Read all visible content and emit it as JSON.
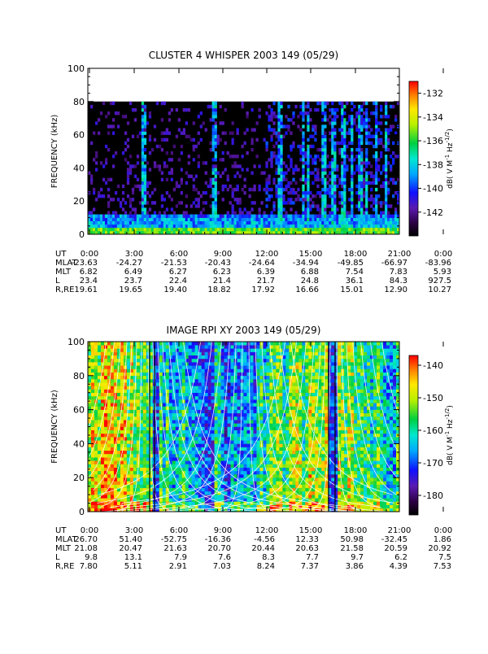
{
  "chart_data": [
    {
      "type": "heatmap",
      "title": "CLUSTER 4 WHISPER 2003 149 (05/29)",
      "ylabel": "FREQUENCY (kHz)",
      "ylim": [
        0,
        100
      ],
      "yticks": [
        "0",
        "20",
        "40",
        "60",
        "80",
        "100"
      ],
      "data_ceiling_khz": 80,
      "colorbar": {
        "label": "dB( V M⁻¹ Hz⁻¹ᐟ²)",
        "label_parts": [
          "dB( V M",
          "-1",
          " Hz",
          "-1/2",
          ")"
        ],
        "range": [
          -144,
          -131
        ],
        "ticks": [
          "-132",
          "-134",
          "-136",
          "-138",
          "-140",
          "-142"
        ],
        "tick_values": [
          -132,
          -134,
          -136,
          -138,
          -140,
          -142
        ]
      },
      "x_ticks": [
        "0:00",
        "3:00",
        "6:00",
        "9:00",
        "12:00",
        "15:00",
        "18:00",
        "21:00",
        "0:00"
      ],
      "ephemeris": [
        {
          "label": "UT",
          "values": [
            "0:00",
            "3:00",
            "6:00",
            "9:00",
            "12:00",
            "15:00",
            "18:00",
            "21:00",
            "0:00"
          ]
        },
        {
          "label": "MLAT",
          "values": [
            "-23.63",
            "-24.27",
            "-21.53",
            "-20.43",
            "-24.64",
            "-34.94",
            "-49.85",
            "-66.97",
            "-83.96"
          ]
        },
        {
          "label": "MLT",
          "values": [
            "6.82",
            "6.49",
            "6.27",
            "6.23",
            "6.39",
            "6.88",
            "7.54",
            "7.83",
            "5.93"
          ]
        },
        {
          "label": "L",
          "values": [
            "23.4",
            "23.7",
            "22.4",
            "21.4",
            "21.7",
            "24.8",
            "36.1",
            "84.3",
            "927.5"
          ]
        },
        {
          "label": "R,RE",
          "values": [
            "19.61",
            "19.65",
            "19.40",
            "18.82",
            "17.92",
            "16.66",
            "15.01",
            "12.90",
            "10.27"
          ]
        }
      ]
    },
    {
      "type": "heatmap",
      "title": "IMAGE RPI XY 2003 149 (05/29)",
      "ylabel": "FREQUENCY (kHz)",
      "ylim": [
        0,
        100
      ],
      "yticks": [
        "0",
        "20",
        "40",
        "60",
        "80",
        "100"
      ],
      "colorbar": {
        "label": "dB( V M⁻¹ Hz⁻¹ᐟ²)",
        "label_parts": [
          "dB( V M",
          "-1",
          " Hz",
          "-1/2",
          ")"
        ],
        "range": [
          -186,
          -137
        ],
        "ticks": [
          "-140",
          "-150",
          "-160",
          "-170",
          "-180"
        ],
        "tick_values": [
          -140,
          -150,
          -160,
          -170,
          -180
        ]
      },
      "x_ticks": [
        "0:00",
        "3:00",
        "6:00",
        "9:00",
        "12:00",
        "15:00",
        "18:00",
        "21:00",
        "0:00"
      ],
      "ephemeris": [
        {
          "label": "UT",
          "values": [
            "0:00",
            "3:00",
            "6:00",
            "9:00",
            "12:00",
            "15:00",
            "18:00",
            "21:00",
            "0:00"
          ]
        },
        {
          "label": "MLAT",
          "values": [
            "26.70",
            "51.40",
            "-52.75",
            "-16.36",
            "-4.56",
            "12.33",
            "50.98",
            "-32.45",
            "1.86"
          ]
        },
        {
          "label": "MLT",
          "values": [
            "21.08",
            "20.47",
            "21.63",
            "20.70",
            "20.44",
            "20.63",
            "21.58",
            "20.59",
            "20.92"
          ]
        },
        {
          "label": "L",
          "values": [
            "9.8",
            "13.1",
            "7.9",
            "7.6",
            "8.3",
            "7.7",
            "9.7",
            "6.2",
            "7.5"
          ]
        },
        {
          "label": "R,RE",
          "values": [
            "7.80",
            "5.11",
            "2.91",
            "7.03",
            "8.24",
            "7.37",
            "3.86",
            "4.39",
            "7.53"
          ]
        }
      ]
    }
  ]
}
